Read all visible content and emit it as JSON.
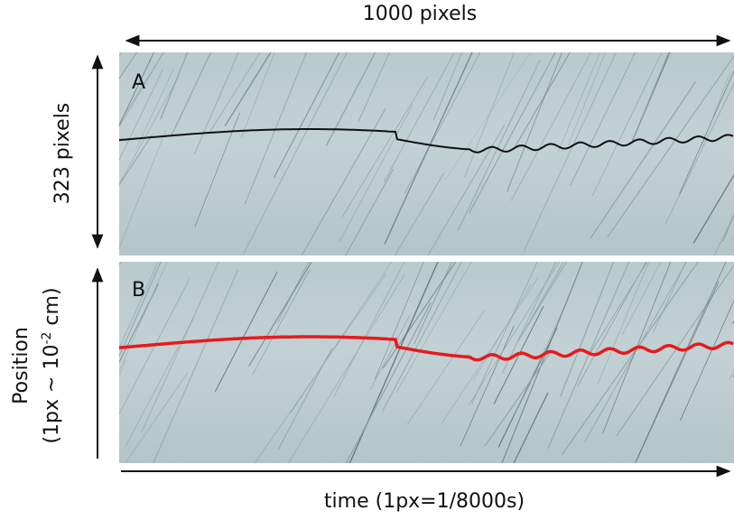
{
  "figure": {
    "top_label": "1000 pixels",
    "left_label": "323 pixels",
    "panel_a": "A",
    "panel_b": "B",
    "position_label": {
      "line1": "Position",
      "line2_start": "(1px ~ 10",
      "line2_sup": "-2",
      "line2_end": " cm)"
    },
    "bottom_label": "time (1px=1/8000s)"
  }
}
